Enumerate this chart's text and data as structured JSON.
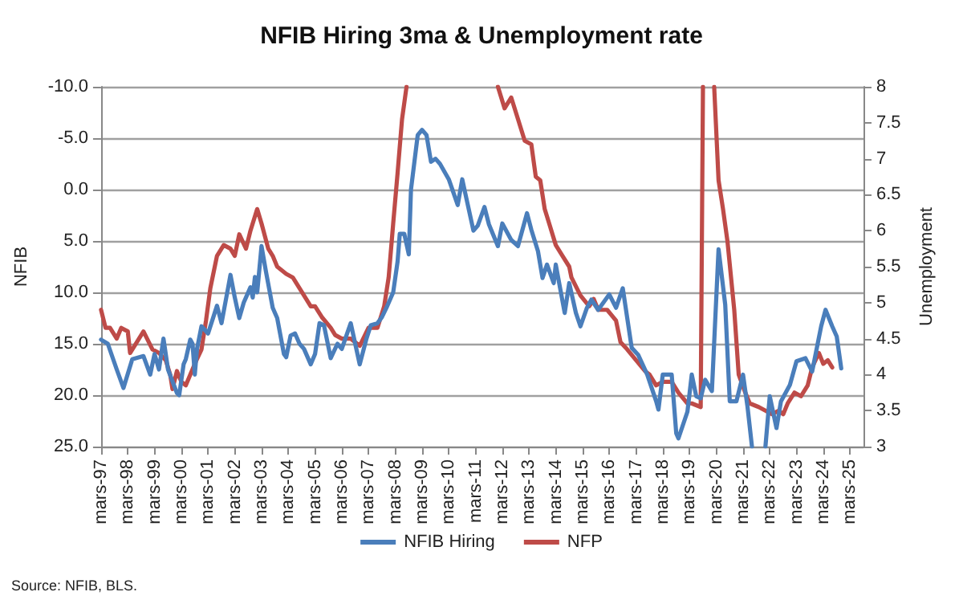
{
  "chart_data": {
    "type": "line",
    "title": "NFIB Hiring 3ma & Unemployment rate",
    "ylabel": "NFIB",
    "y2label": "Unemployment",
    "annotations": [
      "Source: NFIB, BLS."
    ],
    "xlim": [
      "1997-03",
      "2025-09"
    ],
    "xticks": [
      {
        "value": "1997-03",
        "label": "mars-97"
      },
      {
        "value": "1998-03",
        "label": "mars-98"
      },
      {
        "value": "1999-03",
        "label": "mars-99"
      },
      {
        "value": "2000-03",
        "label": "mars-00"
      },
      {
        "value": "2001-03",
        "label": "mars-01"
      },
      {
        "value": "2002-03",
        "label": "mars-02"
      },
      {
        "value": "2003-03",
        "label": "mars-03"
      },
      {
        "value": "2004-03",
        "label": "mars-04"
      },
      {
        "value": "2005-03",
        "label": "mars-05"
      },
      {
        "value": "2006-03",
        "label": "mars-06"
      },
      {
        "value": "2007-03",
        "label": "mars-07"
      },
      {
        "value": "2008-03",
        "label": "mars-08"
      },
      {
        "value": "2009-03",
        "label": "mars-09"
      },
      {
        "value": "2010-03",
        "label": "mars-10"
      },
      {
        "value": "2011-03",
        "label": "mars-11"
      },
      {
        "value": "2012-03",
        "label": "mars-12"
      },
      {
        "value": "2013-03",
        "label": "mars-13"
      },
      {
        "value": "2014-03",
        "label": "mars-14"
      },
      {
        "value": "2015-03",
        "label": "mars-15"
      },
      {
        "value": "2016-03",
        "label": "mars-16"
      },
      {
        "value": "2017-03",
        "label": "mars-17"
      },
      {
        "value": "2018-03",
        "label": "mars-18"
      },
      {
        "value": "2019-03",
        "label": "mars-19"
      },
      {
        "value": "2020-03",
        "label": "mars-20"
      },
      {
        "value": "2021-03",
        "label": "mars-21"
      },
      {
        "value": "2022-03",
        "label": "mars-22"
      },
      {
        "value": "2023-03",
        "label": "mars-23"
      },
      {
        "value": "2024-03",
        "label": "mars-24"
      },
      {
        "value": "2025-03",
        "label": "mars-25"
      }
    ],
    "ylim": [
      25,
      -10
    ],
    "yticks": [
      {
        "value": -10,
        "label": "-10.0"
      },
      {
        "value": -5,
        "label": "-5.0"
      },
      {
        "value": 0,
        "label": "0.0"
      },
      {
        "value": 5,
        "label": "5.0"
      },
      {
        "value": 10,
        "label": "10.0"
      },
      {
        "value": 15,
        "label": "15.0"
      },
      {
        "value": 20,
        "label": "20.0"
      },
      {
        "value": 25,
        "label": "25.0"
      }
    ],
    "y2lim": [
      3,
      8
    ],
    "y2ticks": [
      3,
      3.5,
      4,
      4.5,
      5,
      5.5,
      6,
      6.5,
      7,
      7.5,
      8
    ],
    "grid": "y",
    "legend": "bottom",
    "marker": "none",
    "line_style": "solid",
    "series": [
      {
        "name": "NFIB Hiring",
        "color": "#4a7ebb",
        "x": [
          "1997-03",
          "1997-06",
          "1997-10",
          "1998-01",
          "1998-05",
          "1998-10",
          "1999-01",
          "1999-03",
          "1999-05",
          "1999-07",
          "1999-09",
          "2000-01",
          "2000-02",
          "2000-04",
          "2000-05",
          "2000-07",
          "2000-08",
          "2000-09",
          "2000-10",
          "2000-12",
          "2001-03",
          "2001-07",
          "2001-09",
          "2001-12",
          "2002-01",
          "2002-03",
          "2002-05",
          "2002-07",
          "2002-10",
          "2002-11",
          "2002-12",
          "2003-01",
          "2003-03",
          "2003-05",
          "2003-08",
          "2003-10",
          "2004-01",
          "2004-02",
          "2004-04",
          "2004-06",
          "2004-08",
          "2004-10",
          "2005-01",
          "2005-03",
          "2005-05",
          "2005-07",
          "2005-10",
          "2006-01",
          "2006-03",
          "2006-07",
          "2006-11",
          "2007-02",
          "2007-04",
          "2007-07",
          "2007-09",
          "2007-11",
          "2008-02",
          "2008-04",
          "2008-05",
          "2008-07",
          "2008-09",
          "2008-10",
          "2009-01",
          "2009-03",
          "2009-05",
          "2009-07",
          "2009-09",
          "2009-11",
          "2010-03",
          "2010-07",
          "2010-09",
          "2010-10",
          "2011-02",
          "2011-04",
          "2011-07",
          "2011-09",
          "2012-01",
          "2012-03",
          "2012-07",
          "2012-10",
          "2013-02",
          "2013-04",
          "2013-07",
          "2013-09",
          "2013-11",
          "2014-02",
          "2014-03",
          "2014-07",
          "2014-09",
          "2014-12",
          "2015-02",
          "2015-05",
          "2015-07",
          "2015-10",
          "2016-03",
          "2016-06",
          "2016-09",
          "2017-01",
          "2017-04",
          "2017-08",
          "2017-12",
          "2018-01",
          "2018-03",
          "2018-07",
          "2018-09",
          "2018-10",
          "2019-02",
          "2019-04",
          "2019-06",
          "2019-08",
          "2019-10",
          "2020-01",
          "2020-04",
          "2020-07",
          "2020-09",
          "2020-12",
          "2021-03",
          "2021-05",
          "2021-07",
          "2021-09",
          "2022-01",
          "2022-03",
          "2022-06",
          "2022-08",
          "2022-12",
          "2023-03",
          "2023-07",
          "2023-10",
          "2024-02",
          "2024-04",
          "2024-07",
          "2024-09",
          "2024-11"
        ],
        "values": [
          14.6,
          15.0,
          17.5,
          19.3,
          16.5,
          16.2,
          18.0,
          16.0,
          17.5,
          14.5,
          17.5,
          19.8,
          20.0,
          17.0,
          16.5,
          14.6,
          15.0,
          18.0,
          15.5,
          13.3,
          14.0,
          11.3,
          13.0,
          9.5,
          8.3,
          10.5,
          12.5,
          11.0,
          9.5,
          10.5,
          8.5,
          10.0,
          5.5,
          8.0,
          11.5,
          12.5,
          16.0,
          16.3,
          14.2,
          14.0,
          15.0,
          15.5,
          17.0,
          16.0,
          13.0,
          13.2,
          16.4,
          15.0,
          15.5,
          13.0,
          17.0,
          14.5,
          13.2,
          13.0,
          12.4,
          11.5,
          10.0,
          7.0,
          4.3,
          4.3,
          6.3,
          0.0,
          -5.3,
          -5.8,
          -5.3,
          -2.7,
          -3.0,
          -2.5,
          -1.0,
          1.5,
          -1.0,
          0.0,
          4.0,
          3.5,
          1.7,
          3.4,
          5.5,
          3.3,
          4.9,
          5.5,
          2.3,
          3.9,
          6.0,
          8.6,
          7.3,
          9.1,
          7.3,
          12.0,
          9.1,
          12.0,
          13.3,
          11.5,
          10.7,
          11.7,
          10.2,
          11.5,
          9.6,
          15.4,
          16.1,
          18.0,
          20.6,
          21.4,
          18.0,
          18.0,
          23.7,
          24.2,
          21.6,
          18.0,
          20.1,
          20.3,
          18.5,
          19.6,
          5.8,
          11.2,
          20.6,
          20.6,
          18.0,
          21.1,
          25,
          null,
          25,
          20.1,
          23.2,
          20.6,
          19.0,
          16.7,
          16.4,
          17.7,
          13.3,
          11.7,
          13.3,
          14.3,
          17.4
        ]
      },
      {
        "name": "NFP",
        "color": "#be4b48",
        "axis": "y2",
        "x": [
          "1997-03",
          "1997-05",
          "1997-07",
          "1997-10",
          "1997-12",
          "1998-03",
          "1998-04",
          "1998-08",
          "1998-10",
          "1999-02",
          "1999-05",
          "1999-08",
          "1999-10",
          "1999-11",
          "2000-01",
          "2000-03",
          "2000-05",
          "2000-09",
          "2000-12",
          "2001-02",
          "2001-04",
          "2001-07",
          "2001-10",
          "2002-01",
          "2002-03",
          "2002-05",
          "2002-08",
          "2002-10",
          "2003-01",
          "2003-03",
          "2003-06",
          "2003-08",
          "2003-10",
          "2004-02",
          "2004-05",
          "2004-08",
          "2005-01",
          "2005-03",
          "2005-06",
          "2005-10",
          "2005-12",
          "2006-03",
          "2006-07",
          "2006-11",
          "2007-03",
          "2007-07",
          "2007-10",
          "2007-12",
          "2008-02",
          "2008-04",
          "2008-06",
          "2008-08",
          "2008-09",
          "2012-01",
          "2012-04",
          "2012-07",
          "2012-10",
          "2013-01",
          "2013-04",
          "2013-06",
          "2013-08",
          "2013-10",
          "2013-12",
          "2014-03",
          "2014-06",
          "2014-09",
          "2014-10",
          "2015-02",
          "2015-06",
          "2015-08",
          "2015-10",
          "2016-02",
          "2016-06",
          "2016-08",
          "2016-11",
          "2017-03",
          "2017-07",
          "2017-09",
          "2017-12",
          "2018-03",
          "2018-07",
          "2018-10",
          "2019-02",
          "2019-04",
          "2019-08",
          "2019-09",
          "2019-10",
          "2020-02",
          "2020-04",
          "2020-06",
          "2020-08",
          "2020-11",
          "2021-01",
          "2021-04",
          "2021-06",
          "2021-10",
          "2022-01",
          "2022-04",
          "2022-07",
          "2022-09",
          "2022-11",
          "2023-02",
          "2023-05",
          "2023-08",
          "2023-10",
          "2024-01",
          "2024-03",
          "2024-05",
          "2024-07"
        ],
        "values": [
          4.9,
          4.65,
          4.65,
          4.5,
          4.65,
          4.6,
          4.3,
          4.5,
          4.6,
          4.35,
          4.3,
          4.2,
          4.0,
          3.8,
          4.05,
          3.9,
          3.85,
          4.15,
          4.35,
          4.75,
          5.2,
          5.65,
          5.8,
          5.75,
          5.65,
          5.95,
          5.75,
          6.0,
          6.3,
          6.1,
          5.75,
          5.65,
          5.5,
          5.4,
          5.35,
          5.2,
          4.95,
          4.95,
          4.8,
          4.65,
          4.55,
          4.5,
          4.5,
          4.4,
          4.65,
          4.65,
          4.95,
          5.35,
          6.1,
          6.8,
          7.55,
          8,
          null,
          8,
          7.7,
          7.85,
          7.55,
          7.25,
          7.2,
          6.75,
          6.7,
          6.3,
          6.1,
          5.8,
          5.65,
          5.5,
          5.35,
          5.1,
          4.95,
          5.05,
          4.9,
          4.9,
          4.75,
          4.45,
          4.35,
          4.2,
          4.05,
          4.0,
          3.85,
          3.9,
          3.9,
          3.75,
          3.6,
          3.6,
          3.55,
          8,
          null,
          8,
          6.7,
          6.3,
          5.85,
          4.9,
          4.0,
          3.75,
          3.6,
          3.55,
          3.5,
          3.45,
          3.5,
          3.45,
          3.6,
          3.75,
          3.7,
          3.85,
          4.1,
          4.3,
          4.15,
          4.2,
          4.1
        ]
      }
    ]
  }
}
